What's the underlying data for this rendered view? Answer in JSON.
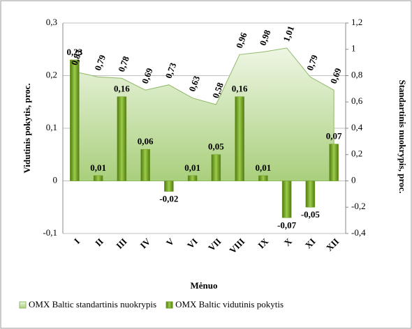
{
  "chart_data": {
    "type": "bar-area",
    "categories": [
      "I",
      "II",
      "III",
      "IV",
      "V",
      "VI",
      "VII",
      "VIII",
      "IX",
      "X",
      "XI",
      "XII"
    ],
    "series": [
      {
        "name": "OMX Baltic standartinis nuokrypis",
        "type": "area",
        "axis": "y2",
        "color": "#c6dfa8",
        "values": [
          0.83,
          0.79,
          0.78,
          0.69,
          0.73,
          0.63,
          0.58,
          0.96,
          0.98,
          1.01,
          0.79,
          0.69
        ],
        "value_labels": [
          "0,83",
          "0,79",
          "0,78",
          "0,69",
          "0,73",
          "0,63",
          "0,58",
          "0,96",
          "0,98",
          "1,01",
          "0,79",
          "0,69"
        ]
      },
      {
        "name": "OMX Baltic vidutinis pokytis",
        "type": "bar",
        "axis": "y",
        "color": "#6e9a22",
        "values": [
          0.23,
          0.01,
          0.16,
          0.06,
          -0.02,
          0.01,
          0.05,
          0.16,
          0.01,
          -0.07,
          -0.05,
          0.07
        ],
        "value_labels": [
          "0,23",
          "0,01",
          "0,16",
          "0,06",
          "-0,02",
          "0,01",
          "0,05",
          "0,16",
          "0,01",
          "-0,07",
          "-0,05",
          "0,07"
        ]
      }
    ],
    "xlabel": "Mėnuo",
    "ylabel": "Vidutinis pokytis, proc.",
    "y2label": "Standartinis nuokrypis, proc.",
    "ylim": [
      -0.1,
      0.3
    ],
    "yticks": [
      {
        "value": -0.1,
        "label": "-0,1"
      },
      0,
      {
        "value": 0.1,
        "label": "0,1"
      },
      {
        "value": 0.2,
        "label": "0,2"
      },
      {
        "value": 0.3,
        "label": "0,3"
      }
    ],
    "y2lim": [
      -0.4,
      1.2
    ],
    "y2ticks": [
      {
        "value": -0.4,
        "label": "-0,4"
      },
      {
        "value": -0.2,
        "label": "-0,2"
      },
      0,
      {
        "value": 0.2,
        "label": "0,2"
      },
      {
        "value": 0.4,
        "label": "0,4"
      },
      {
        "value": 0.6,
        "label": "0,6"
      },
      {
        "value": 0.8,
        "label": "0,8"
      },
      1,
      {
        "value": 1.2,
        "label": "1,2"
      }
    ],
    "grid": true,
    "legend": "bottom"
  }
}
